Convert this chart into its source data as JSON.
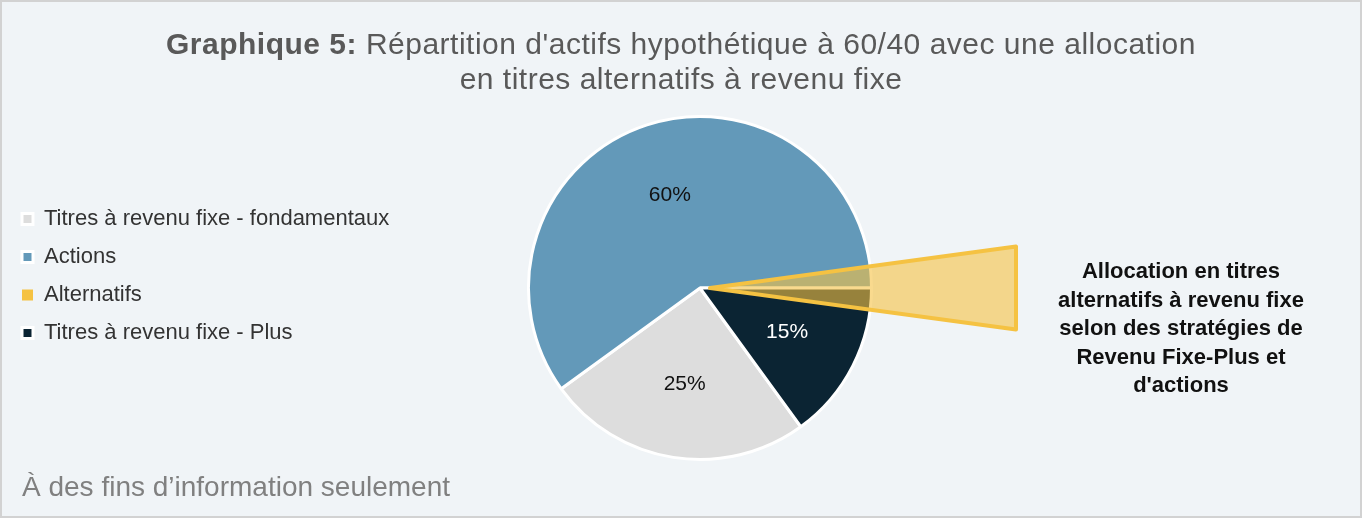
{
  "chart_data": {
    "type": "pie",
    "title": "Graphique 5: Répartition d'actifs hypothétique à 60/40 avec une allocation en titres alternatifs à revenu fixe",
    "categories": [
      "Titres à revenu fixe - fondamentaux",
      "Actions",
      "Alternatifs",
      "Titres à revenu fixe - Plus"
    ],
    "values": [
      25,
      60,
      null,
      15
    ],
    "colors": [
      "#dddddd",
      "#6399b9",
      "#f5c242",
      "#0b2433"
    ],
    "value_labels": [
      "25%",
      "60%",
      null,
      "15%"
    ],
    "legend": "left",
    "annotations": [
      "Allocation en titres alternatifs à revenu fixe selon des stratégies de Revenu Fixe-Plus et d'actions",
      "À des fins d’information seulement"
    ]
  }
}
